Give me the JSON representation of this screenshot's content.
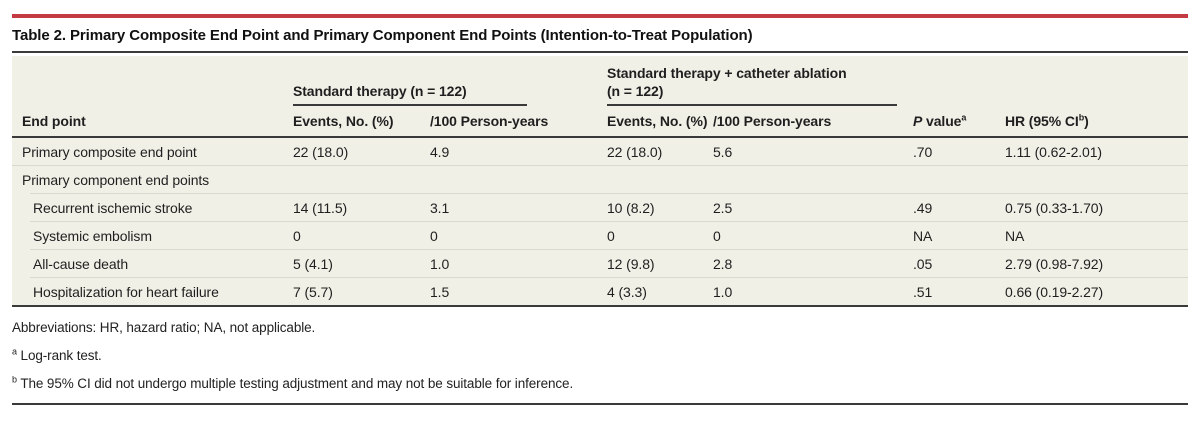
{
  "title": "Table 2. Primary Composite End Point and Primary Component End Points (Intention-to-Treat Population)",
  "colors": {
    "accent_red": "#C33C44",
    "table_background": "#F1F0E7",
    "dark_rule": "#3a3a3a",
    "row_separator": "#DBD9CB",
    "text": "#1f1f1f"
  },
  "chart_data": {
    "type": "table",
    "title": "Table 2. Primary Composite End Point and Primary Component End Points (Intention-to-Treat Population)",
    "column_groups": [
      "Standard therapy (n = 122)",
      "Standard therapy + catheter ablation (n = 122)"
    ],
    "columns": [
      "End point",
      "Events, No. (%)",
      "/100 Person-years",
      "Events, No. (%)",
      "/100 Person-years",
      "P value",
      "HR (95% CI)"
    ],
    "rows": [
      [
        "Primary composite end point",
        "22 (18.0)",
        "4.9",
        "22 (18.0)",
        "5.6",
        ".70",
        "1.11 (0.62-2.01)"
      ],
      [
        "Primary component end points",
        "",
        "",
        "",
        "",
        "",
        ""
      ],
      [
        "Recurrent ischemic stroke",
        "14 (11.5)",
        "3.1",
        "10 (8.2)",
        "2.5",
        ".49",
        "0.75 (0.33-1.70)"
      ],
      [
        "Systemic embolism",
        "0",
        "0",
        "0",
        "0",
        "NA",
        "NA"
      ],
      [
        "All-cause death",
        "5 (4.1)",
        "1.0",
        "12 (9.8)",
        "2.8",
        ".05",
        "2.79 (0.98-7.92)"
      ],
      [
        "Hospitalization for heart failure",
        "7 (5.7)",
        "1.5",
        "4 (3.3)",
        "1.0",
        ".51",
        "0.66 (0.19-2.27)"
      ]
    ]
  },
  "header": {
    "row_label": "End point",
    "groups": [
      {
        "lines": [
          "Standard therapy (n = 122)"
        ]
      },
      {
        "lines": [
          "Standard therapy + catheter ablation",
          "(n = 122)"
        ]
      }
    ],
    "col_events_std": "Events, No. (%)",
    "col_py_std": "/100 Person-years",
    "col_events_abl": "Events, No. (%)",
    "col_py_abl": "/100 Person-years",
    "p_value": {
      "italic": "P",
      "rest": " value",
      "sup": "a"
    },
    "hr": {
      "pre": "HR (95% CI",
      "sup": "b",
      "post": ")"
    }
  },
  "rows": [
    {
      "label": "Primary composite end point",
      "cells": [
        "22 (18.0)",
        "4.9",
        "22 (18.0)",
        "5.6",
        ".70",
        "1.11 (0.62-2.01)"
      ]
    },
    {
      "label": "Primary component end points",
      "cells": [
        "",
        "",
        "",
        "",
        "",
        ""
      ]
    },
    {
      "label": "Recurrent ischemic stroke",
      "cells": [
        "14 (11.5)",
        "3.1",
        "10 (8.2)",
        "2.5",
        ".49",
        "0.75 (0.33-1.70)"
      ]
    },
    {
      "label": "Systemic embolism",
      "cells": [
        "0",
        "0",
        "0",
        "0",
        "NA",
        "NA"
      ]
    },
    {
      "label": "All-cause death",
      "cells": [
        "5 (4.1)",
        "1.0",
        "12 (9.8)",
        "2.8",
        ".05",
        "2.79 (0.98-7.92)"
      ]
    },
    {
      "label": "Hospitalization for heart failure",
      "cells": [
        "7 (5.7)",
        "1.5",
        "4 (3.3)",
        "1.0",
        ".51",
        "0.66 (0.19-2.27)"
      ]
    }
  ],
  "footnotes": {
    "abbreviations": "Abbreviations: HR, hazard ratio; NA, not applicable.",
    "a": {
      "sup": "a",
      "text": " Log-rank test."
    },
    "b": {
      "sup": "b",
      "text": " The 95% CI did not undergo multiple testing adjustment and may not be suitable for inference."
    }
  }
}
